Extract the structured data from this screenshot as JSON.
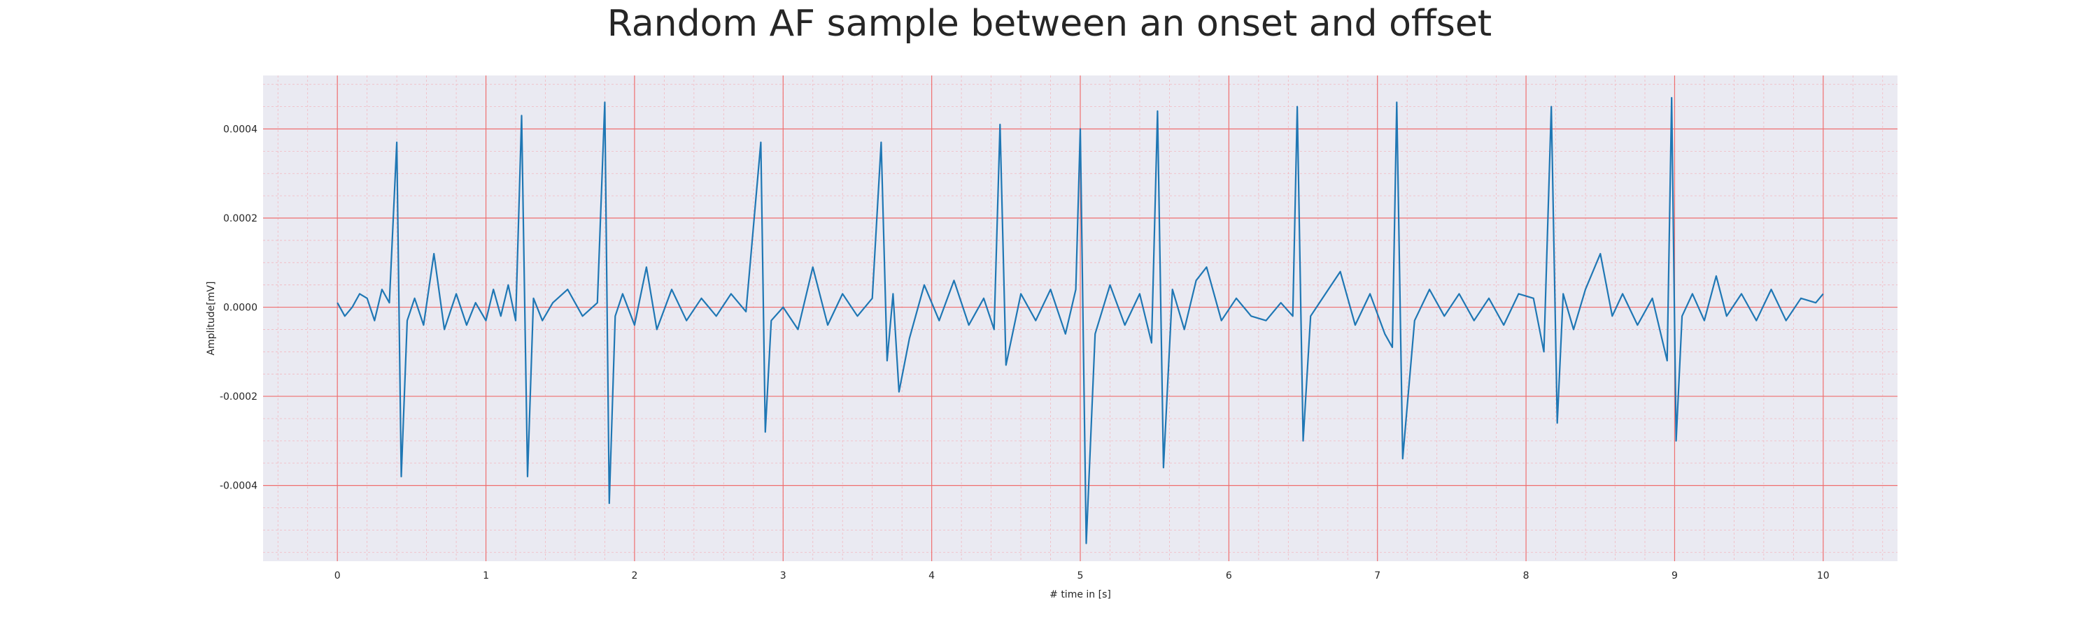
{
  "chart_data": {
    "type": "line",
    "title": "Random AF sample between an onset and offset",
    "xlabel": "# time in [s]",
    "ylabel": "Amplitude[mV]",
    "xlim": [
      -0.5,
      10.5
    ],
    "ylim": [
      -0.00057,
      0.00052
    ],
    "x_ticks": [
      0,
      1,
      2,
      3,
      4,
      5,
      6,
      7,
      8,
      9,
      10
    ],
    "x_tick_labels": [
      "0",
      "1",
      "2",
      "3",
      "4",
      "5",
      "6",
      "7",
      "8",
      "9",
      "10"
    ],
    "y_ticks": [
      0.0004,
      0.0002,
      0.0,
      -0.0002,
      -0.0004
    ],
    "y_tick_labels": [
      "0.0004",
      "0.0002",
      "0.0000",
      "-0.0002",
      "-0.0004"
    ],
    "grid": true,
    "minor_grid": true,
    "legend": "none",
    "colors": {
      "line": "#1f77b4",
      "plot_background": "#eaeaf2",
      "major_grid": "#ef6f6f",
      "minor_grid": "#f2b8c0"
    },
    "series": [
      {
        "x": [
          0.0,
          0.05,
          0.1,
          0.15,
          0.2,
          0.25,
          0.3,
          0.35,
          0.4,
          0.43,
          0.47,
          0.52,
          0.58,
          0.65,
          0.72,
          0.8,
          0.87,
          0.93,
          1.0,
          1.05,
          1.1,
          1.15,
          1.2,
          1.24,
          1.28,
          1.32,
          1.38,
          1.45,
          1.55,
          1.65,
          1.75,
          1.8,
          1.83,
          1.87,
          1.92,
          2.0,
          2.08,
          2.15,
          2.25,
          2.35,
          2.45,
          2.55,
          2.65,
          2.75,
          2.85,
          2.88,
          2.92,
          3.0,
          3.1,
          3.2,
          3.3,
          3.4,
          3.5,
          3.6,
          3.66,
          3.7,
          3.74,
          3.78,
          3.85,
          3.95,
          4.05,
          4.15,
          4.25,
          4.35,
          4.42,
          4.46,
          4.5,
          4.6,
          4.7,
          4.8,
          4.9,
          4.97,
          5.0,
          5.04,
          5.1,
          5.2,
          5.3,
          5.4,
          5.48,
          5.52,
          5.56,
          5.62,
          5.7,
          5.78,
          5.85,
          5.95,
          6.05,
          6.15,
          6.25,
          6.35,
          6.43,
          6.46,
          6.5,
          6.55,
          6.65,
          6.75,
          6.85,
          6.95,
          7.05,
          7.1,
          7.13,
          7.17,
          7.25,
          7.35,
          7.45,
          7.55,
          7.65,
          7.75,
          7.85,
          7.95,
          8.05,
          8.12,
          8.17,
          8.21,
          8.25,
          8.32,
          8.4,
          8.5,
          8.58,
          8.65,
          8.75,
          8.85,
          8.95,
          8.98,
          9.01,
          9.05,
          9.12,
          9.2,
          9.28,
          9.35,
          9.45,
          9.55,
          9.65,
          9.75,
          9.85,
          9.95,
          10.0
        ],
        "y": [
          1e-05,
          -2e-05,
          0.0,
          3e-05,
          2e-05,
          -3e-05,
          4e-05,
          1e-05,
          0.00037,
          -0.00038,
          -3e-05,
          2e-05,
          -4e-05,
          0.00012,
          -5e-05,
          3e-05,
          -4e-05,
          1e-05,
          -3e-05,
          4e-05,
          -2e-05,
          5e-05,
          -3e-05,
          0.00043,
          -0.00038,
          2e-05,
          -3e-05,
          1e-05,
          4e-05,
          -2e-05,
          1e-05,
          0.00046,
          -0.00044,
          -2e-05,
          3e-05,
          -4e-05,
          9e-05,
          -5e-05,
          4e-05,
          -3e-05,
          2e-05,
          -2e-05,
          3e-05,
          -1e-05,
          0.00037,
          -0.00028,
          -3e-05,
          0.0,
          -5e-05,
          9e-05,
          -4e-05,
          3e-05,
          -2e-05,
          2e-05,
          0.00037,
          -0.00012,
          3e-05,
          -0.00019,
          -7e-05,
          5e-05,
          -3e-05,
          6e-05,
          -4e-05,
          2e-05,
          -5e-05,
          0.00041,
          -0.00013,
          3e-05,
          -3e-05,
          4e-05,
          -6e-05,
          4e-05,
          0.0004,
          -0.00053,
          -6e-05,
          5e-05,
          -4e-05,
          3e-05,
          -8e-05,
          0.00044,
          -0.00036,
          4e-05,
          -5e-05,
          6e-05,
          9e-05,
          -3e-05,
          2e-05,
          -2e-05,
          -3e-05,
          1e-05,
          -2e-05,
          0.00045,
          -0.0003,
          -2e-05,
          3e-05,
          8e-05,
          -4e-05,
          3e-05,
          -6e-05,
          -9e-05,
          0.00046,
          -0.00034,
          -3e-05,
          4e-05,
          -2e-05,
          3e-05,
          -3e-05,
          2e-05,
          -4e-05,
          3e-05,
          2e-05,
          -0.0001,
          0.00045,
          -0.00026,
          3e-05,
          -5e-05,
          4e-05,
          0.00012,
          -2e-05,
          3e-05,
          -4e-05,
          2e-05,
          -0.00012,
          0.00047,
          -0.0003,
          -2e-05,
          3e-05,
          -3e-05,
          7e-05,
          -2e-05,
          3e-05,
          -3e-05,
          4e-05,
          -3e-05,
          2e-05,
          1e-05,
          3e-05
        ]
      }
    ]
  }
}
